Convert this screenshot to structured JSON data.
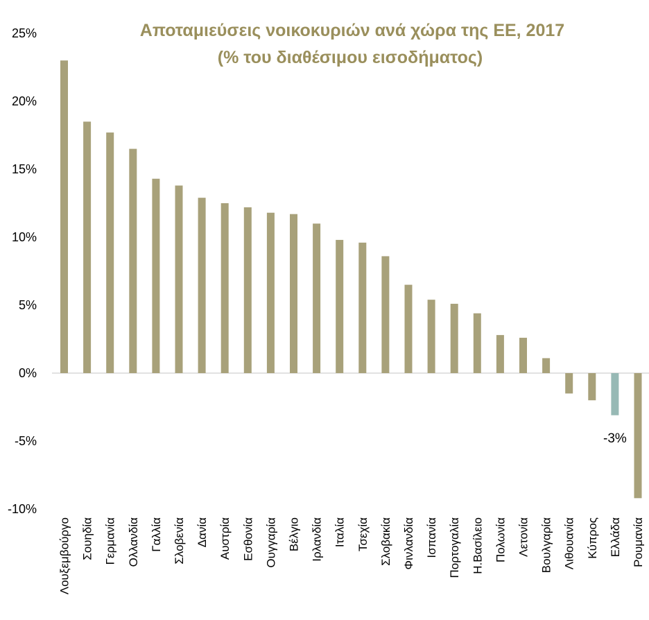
{
  "chart_data": {
    "type": "bar",
    "title": "Αποταμιεύσεις νοικοκυριών ανά χώρα της ΕΕ, 2017",
    "subtitle": "(% του διαθέσιμου εισοδήματος)",
    "xlabel": "",
    "ylabel": "",
    "ylim": [
      -10,
      25
    ],
    "yticks": [
      25,
      20,
      15,
      10,
      5,
      0,
      -5,
      -10
    ],
    "ytick_labels": [
      "25%",
      "20%",
      "15%",
      "10%",
      "5%",
      "0%",
      "-5%",
      "-10%"
    ],
    "grid": false,
    "categories": [
      "Λουξεμβούργο",
      "Σουηδία",
      "Γερμανία",
      "Ολλανδία",
      "Γαλλία",
      "Σλοβενία",
      "Δανία",
      "Αυστρία",
      "Εσθονία",
      "Ουγγαρία",
      "Βέλγιο",
      "Ιρλανδία",
      "Ιταλία",
      "Τσεχία",
      "Σλοβακία",
      "Φινλανδία",
      "Ισπανία",
      "Πορτογαλία",
      "Η.Βασίλειο",
      "Πολωνία",
      "Λετονία",
      "Βουλγαρία",
      "Λιθουανία",
      "Κύπρος",
      "Ελλάδα",
      "Ρουμανία"
    ],
    "values": [
      23.0,
      18.5,
      17.7,
      16.5,
      14.3,
      13.8,
      12.9,
      12.5,
      12.2,
      11.8,
      11.7,
      11.0,
      9.8,
      9.6,
      8.6,
      6.5,
      5.4,
      5.1,
      4.4,
      2.8,
      2.6,
      1.1,
      -1.5,
      -2.0,
      -3.1,
      -9.2
    ],
    "highlight_category": "Ελλάδα",
    "highlight_label": "-3%",
    "colors": {
      "bar": "#a8a17a",
      "highlight": "#97b9b5",
      "title": "#9a8f5c",
      "axis": "#d9d9d9"
    }
  }
}
